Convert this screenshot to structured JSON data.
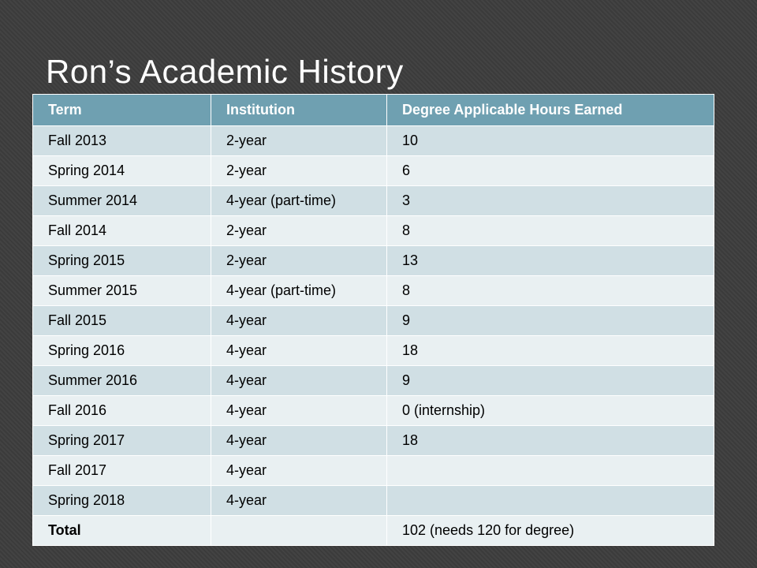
{
  "slide": {
    "title": "Ron’s Academic History"
  },
  "table": {
    "headers": [
      "Term",
      "Institution",
      "Degree Applicable Hours Earned"
    ],
    "rows": [
      [
        "Fall 2013",
        "2-year",
        "10"
      ],
      [
        "Spring 2014",
        "2-year",
        "6"
      ],
      [
        "Summer 2014",
        "4-year (part-time)",
        "3"
      ],
      [
        "Fall 2014",
        "2-year",
        "8"
      ],
      [
        "Spring 2015",
        "2-year",
        "13"
      ],
      [
        "Summer 2015",
        "4-year (part-time)",
        "8"
      ],
      [
        "Fall 2015",
        "4-year",
        "9"
      ],
      [
        "Spring 2016",
        "4-year",
        "18"
      ],
      [
        "Summer 2016",
        "4-year",
        "9"
      ],
      [
        "Fall 2016",
        "4-year",
        "0 (internship)"
      ],
      [
        "Spring 2017",
        "4-year",
        "18"
      ],
      [
        "Fall 2017",
        "4-year",
        ""
      ],
      [
        "Spring 2018",
        "4-year",
        ""
      ]
    ],
    "total": {
      "label": "Total",
      "institution": "",
      "hours": "102 (needs 120 for degree)"
    }
  },
  "colors": {
    "background": "#3d3d3d",
    "header": "#6fa0b1",
    "row_odd": "#d0dfe4",
    "row_even": "#e9f0f2",
    "title_text": "#ffffff"
  }
}
